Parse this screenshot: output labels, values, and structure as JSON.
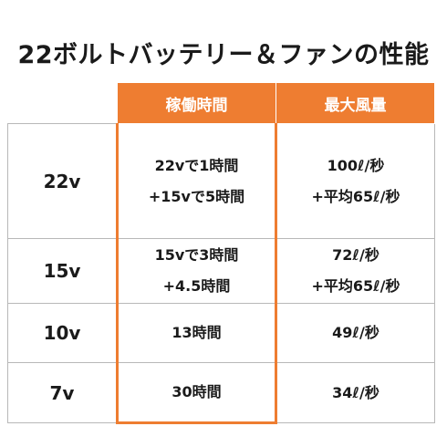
{
  "title": "22ボルトバッテリー＆ファンの性能",
  "table": {
    "headers": {
      "voltage": "",
      "runtime": "稼働時間",
      "airflow": "最大風量"
    },
    "rows": [
      {
        "voltage": "22v",
        "runtime": [
          "22vで1時間",
          "+15vで5時間"
        ],
        "airflow": [
          "100ℓ/秒",
          "+平均65ℓ/秒"
        ]
      },
      {
        "voltage": "15v",
        "runtime": [
          "15vで3時間",
          "+4.5時間"
        ],
        "airflow": [
          "72ℓ/秒",
          "+平均65ℓ/秒"
        ]
      },
      {
        "voltage": "10v",
        "runtime": [
          "13時間"
        ],
        "airflow": [
          "49ℓ/秒"
        ]
      },
      {
        "voltage": "7v",
        "runtime": [
          "30時間"
        ],
        "airflow": [
          "34ℓ/秒"
        ]
      }
    ]
  },
  "colors": {
    "accent": "#ee7d31",
    "header_text": "#ffffff",
    "border": "#b8b8b8"
  }
}
